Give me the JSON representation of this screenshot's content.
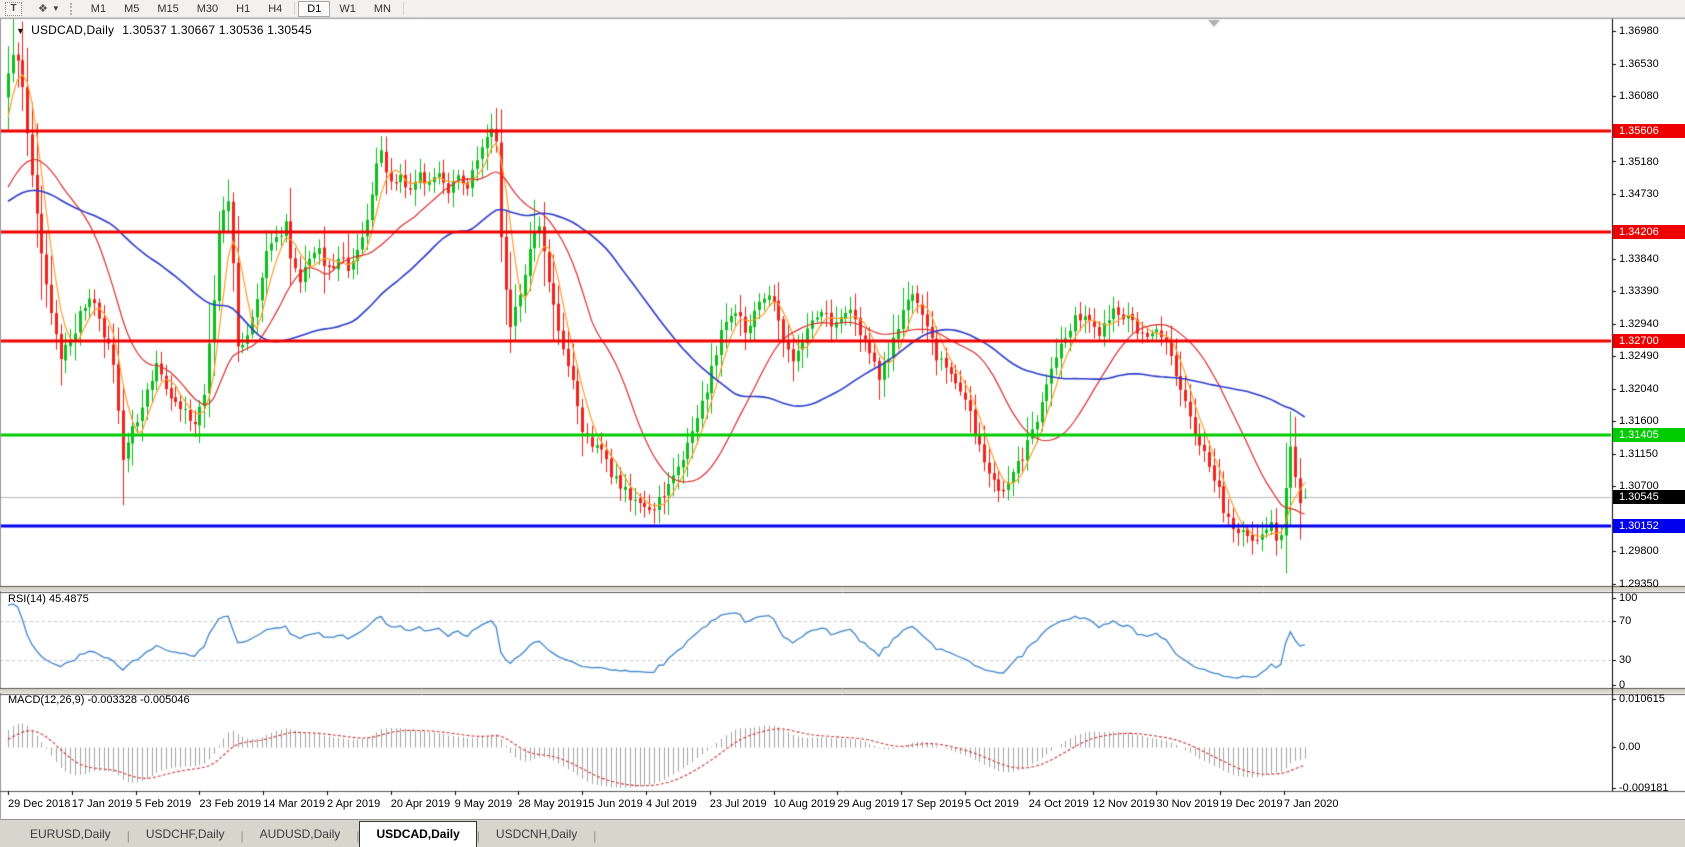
{
  "icons": {
    "collapse": "▼",
    "text_tool": "T",
    "draw_tool": "❖",
    "dropdown": "▼"
  },
  "toolbar": {
    "timeframes": [
      "M1",
      "M5",
      "M15",
      "M30",
      "H1",
      "H4",
      "D1",
      "W1",
      "MN"
    ],
    "active_timeframe": "D1"
  },
  "title": {
    "symbol": "USDCAD,Daily",
    "ohlc": "1.30537 1.30667 1.30536 1.30545"
  },
  "indicator_labels": {
    "rsi": "RSI(14) 45.4875",
    "macd": "MACD(12,26,9) -0.003328 -0.005046"
  },
  "tabs": [
    {
      "label": "EURUSD,Daily",
      "active": false
    },
    {
      "label": "USDCHF,Daily",
      "active": false
    },
    {
      "label": "AUDUSD,Daily",
      "active": false
    },
    {
      "label": "USDCAD,Daily",
      "active": true
    },
    {
      "label": "USDCNH,Daily",
      "active": false
    }
  ],
  "chart_data": {
    "type": "candlestick",
    "symbol": "USDCAD",
    "timeframe": "Daily",
    "candle_count": 272,
    "price_axis": {
      "max": 1.3698,
      "min": 1.2935,
      "tick_labels": [
        "1.36980",
        "1.36530",
        "1.36080",
        "1.35180",
        "1.34730",
        "1.33840",
        "1.33390",
        "1.32940",
        "1.32490",
        "1.32040",
        "1.31600",
        "1.31150",
        "1.30700",
        "1.29800",
        "1.29350"
      ]
    },
    "x_tick_dates": [
      "29 Dec 2018",
      "17 Jan 2019",
      "5 Feb 2019",
      "23 Feb 2019",
      "14 Mar 2019",
      "2 Apr 2019",
      "20 Apr 2019",
      "9 May 2019",
      "28 May 2019",
      "15 Jun 2019",
      "4 Jul 2019",
      "23 Jul 2019",
      "10 Aug 2019",
      "29 Aug 2019",
      "17 Sep 2019",
      "5 Oct 2019",
      "24 Oct 2019",
      "12 Nov 2019",
      "30 Nov 2019",
      "19 Dec 2019",
      "7 Jan 2020"
    ],
    "last_candle": {
      "open": 1.30537,
      "high": 1.30667,
      "low": 1.30536,
      "close": 1.30545
    },
    "current_price": {
      "value": 1.30545,
      "label": "1.30545",
      "bg": "#000000",
      "line_color": "#b9b9b9"
    },
    "levels": [
      {
        "value": 1.35606,
        "label": "1.35606",
        "color": "#ee0000",
        "width": 3
      },
      {
        "value": 1.34206,
        "label": "1.34206",
        "color": "#ee0000",
        "width": 3
      },
      {
        "value": 1.327,
        "label": "1.32700",
        "color": "#ee0000",
        "width": 3
      },
      {
        "value": 1.31405,
        "label": "1.31405",
        "color": "#00cc00",
        "width": 3
      },
      {
        "value": 1.30152,
        "label": "1.30152",
        "color": "#0000ee",
        "width": 3
      }
    ],
    "moving_averages": [
      {
        "period": 5,
        "color": "#ff9e2c",
        "width": 1.2
      },
      {
        "period": 20,
        "color": "#dd3030",
        "width": 1.2
      },
      {
        "period": 50,
        "color": "#2b3ccc",
        "width": 1.6
      }
    ],
    "colors": {
      "up": "#0fbe1d",
      "down": "#f0241b",
      "rsi_line": "#3f87cf",
      "rsi_grid": "#c8c8c8",
      "macd_hist": "#a4a4a4",
      "macd_signal": "#d23a3a"
    },
    "rsi": {
      "period": 14,
      "current": 45.4875,
      "grid_levels": [
        70,
        30
      ],
      "tick_labels": [
        "100",
        "70",
        "30",
        "0"
      ],
      "tick_values": [
        100,
        70,
        30,
        0
      ]
    },
    "macd": {
      "fast": 12,
      "slow": 26,
      "signal_period": 9,
      "main_value": -0.003328,
      "signal_value": -0.005046,
      "tick_labels": [
        "0.010615",
        "0.00",
        "-0.009181"
      ],
      "tick_values": [
        0.010615,
        0.0,
        -0.009181
      ]
    },
    "price_path_anchors": [
      [
        0,
        1.364
      ],
      [
        1,
        1.3668
      ],
      [
        2,
        1.3655
      ],
      [
        3,
        1.3615
      ],
      [
        4,
        1.356
      ],
      [
        5,
        1.3505
      ],
      [
        6,
        1.3445
      ],
      [
        7,
        1.339
      ],
      [
        8,
        1.3345
      ],
      [
        9,
        1.3302
      ],
      [
        11,
        1.3252
      ],
      [
        13,
        1.327
      ],
      [
        15,
        1.3305
      ],
      [
        17,
        1.333
      ],
      [
        19,
        1.33
      ],
      [
        21,
        1.3262
      ],
      [
        22,
        1.324
      ],
      [
        23,
        1.317
      ],
      [
        24,
        1.3112
      ],
      [
        25,
        1.313
      ],
      [
        27,
        1.316
      ],
      [
        29,
        1.321
      ],
      [
        31,
        1.3232
      ],
      [
        33,
        1.3202
      ],
      [
        35,
        1.3182
      ],
      [
        37,
        1.317
      ],
      [
        39,
        1.3152
      ],
      [
        41,
        1.32
      ],
      [
        43,
        1.333
      ],
      [
        44,
        1.342
      ],
      [
        46,
        1.347
      ],
      [
        47,
        1.338
      ],
      [
        48,
        1.3258
      ],
      [
        50,
        1.3285
      ],
      [
        52,
        1.333
      ],
      [
        54,
        1.339
      ],
      [
        56,
        1.3415
      ],
      [
        58,
        1.3428
      ],
      [
        59,
        1.339
      ],
      [
        61,
        1.3355
      ],
      [
        63,
        1.339
      ],
      [
        65,
        1.3405
      ],
      [
        66,
        1.337
      ],
      [
        68,
        1.3378
      ],
      [
        70,
        1.339
      ],
      [
        71,
        1.337
      ],
      [
        73,
        1.3395
      ],
      [
        75,
        1.344
      ],
      [
        77,
        1.3508
      ],
      [
        78,
        1.3528
      ],
      [
        80,
        1.3488
      ],
      [
        82,
        1.35
      ],
      [
        84,
        1.348
      ],
      [
        86,
        1.3505
      ],
      [
        88,
        1.3485
      ],
      [
        90,
        1.3498
      ],
      [
        92,
        1.3482
      ],
      [
        94,
        1.3498
      ],
      [
        96,
        1.3478
      ],
      [
        98,
        1.352
      ],
      [
        100,
        1.3556
      ],
      [
        101,
        1.3568
      ],
      [
        102,
        1.354
      ],
      [
        103,
        1.342
      ],
      [
        104,
        1.334
      ],
      [
        105,
        1.3295
      ],
      [
        106,
        1.332
      ],
      [
        108,
        1.3355
      ],
      [
        110,
        1.3425
      ],
      [
        111,
        1.3435
      ],
      [
        112,
        1.339
      ],
      [
        114,
        1.332
      ],
      [
        116,
        1.3255
      ],
      [
        118,
        1.321
      ],
      [
        120,
        1.315
      ],
      [
        122,
        1.3125
      ],
      [
        124,
        1.3115
      ],
      [
        126,
        1.309
      ],
      [
        128,
        1.3072
      ],
      [
        130,
        1.3055
      ],
      [
        132,
        1.3042
      ],
      [
        134,
        1.303
      ],
      [
        136,
        1.3048
      ],
      [
        138,
        1.3072
      ],
      [
        140,
        1.31
      ],
      [
        142,
        1.3125
      ],
      [
        144,
        1.316
      ],
      [
        146,
        1.3205
      ],
      [
        148,
        1.3255
      ],
      [
        150,
        1.33
      ],
      [
        152,
        1.3315
      ],
      [
        154,
        1.3282
      ],
      [
        156,
        1.3305
      ],
      [
        158,
        1.3335
      ],
      [
        160,
        1.3318
      ],
      [
        162,
        1.3275
      ],
      [
        164,
        1.3248
      ],
      [
        166,
        1.327
      ],
      [
        168,
        1.33
      ],
      [
        170,
        1.3312
      ],
      [
        172,
        1.3295
      ],
      [
        174,
        1.3308
      ],
      [
        176,
        1.3315
      ],
      [
        178,
        1.3282
      ],
      [
        180,
        1.325
      ],
      [
        182,
        1.3222
      ],
      [
        184,
        1.3245
      ],
      [
        186,
        1.3292
      ],
      [
        188,
        1.3335
      ],
      [
        190,
        1.333
      ],
      [
        192,
        1.329
      ],
      [
        194,
        1.325
      ],
      [
        196,
        1.3228
      ],
      [
        198,
        1.321
      ],
      [
        200,
        1.3195
      ],
      [
        202,
        1.314
      ],
      [
        204,
        1.31
      ],
      [
        206,
        1.3075
      ],
      [
        208,
        1.3068
      ],
      [
        210,
        1.3085
      ],
      [
        212,
        1.311
      ],
      [
        214,
        1.3148
      ],
      [
        216,
        1.318
      ],
      [
        218,
        1.3225
      ],
      [
        220,
        1.3265
      ],
      [
        222,
        1.3292
      ],
      [
        224,
        1.3305
      ],
      [
        226,
        1.3292
      ],
      [
        228,
        1.3282
      ],
      [
        230,
        1.3305
      ],
      [
        232,
        1.3312
      ],
      [
        234,
        1.33
      ],
      [
        236,
        1.3285
      ],
      [
        238,
        1.328
      ],
      [
        240,
        1.3282
      ],
      [
        242,
        1.3262
      ],
      [
        244,
        1.3225
      ],
      [
        246,
        1.318
      ],
      [
        248,
        1.3145
      ],
      [
        250,
        1.3118
      ],
      [
        252,
        1.3085
      ],
      [
        254,
        1.304
      ],
      [
        256,
        1.3012
      ],
      [
        258,
        1.3002
      ],
      [
        260,
        1.2995
      ],
      [
        262,
        1.3008
      ],
      [
        264,
        1.3022
      ],
      [
        265,
        1.3
      ],
      [
        266,
        1.2996
      ],
      [
        267,
        1.306
      ],
      [
        268,
        1.3125
      ],
      [
        269,
        1.309
      ],
      [
        270,
        1.3042
      ],
      [
        271,
        1.30545
      ]
    ]
  }
}
